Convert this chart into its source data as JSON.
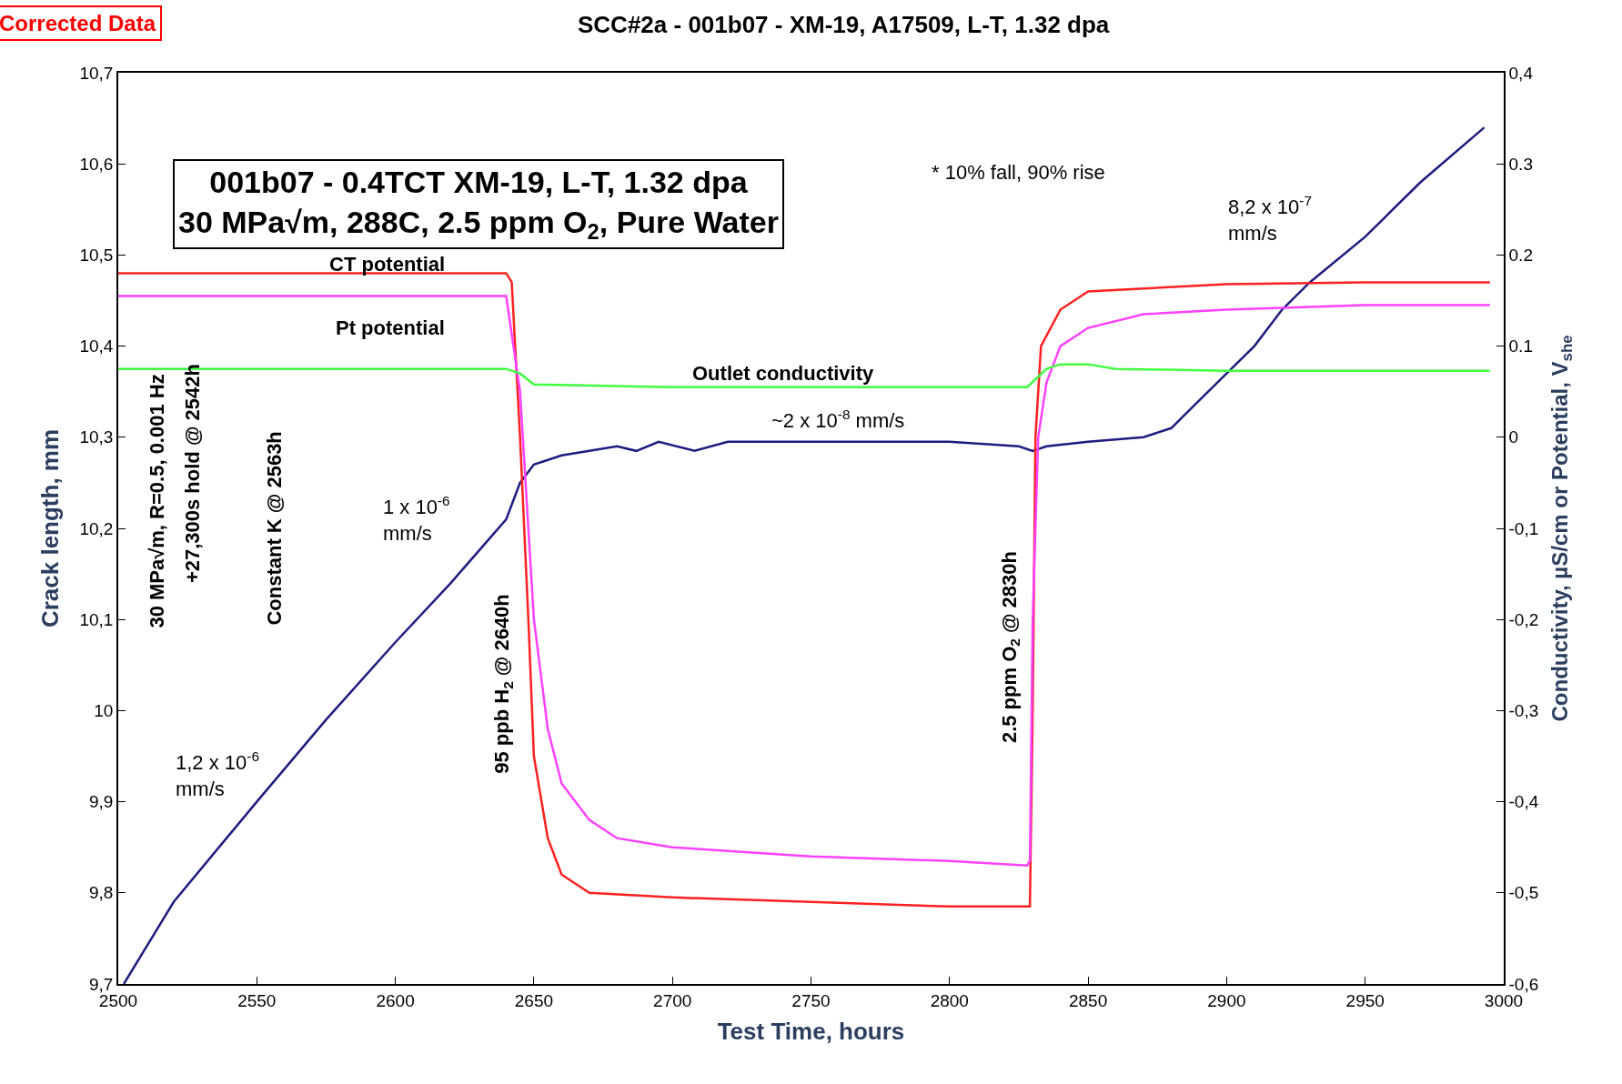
{
  "chart_data": {
    "type": "line",
    "title": "SCC#2a - 001b07 - XM-19, A17509, L-T, 1.32 dpa",
    "xlabel": "Test Time, hours",
    "ylabel": "Crack length, mm",
    "y2label": "Conductivity, µS/cm or Potential, V$_{she}$",
    "xlim": [
      2500,
      3000
    ],
    "xticks": [
      2500,
      2550,
      2600,
      2650,
      2700,
      2750,
      2800,
      2850,
      2900,
      2950,
      3000
    ],
    "ylim": [
      9.7,
      10.7
    ],
    "yticks": [
      {
        "value": 9.7,
        "label": "9,7"
      },
      {
        "value": 9.8,
        "label": "9,8"
      },
      {
        "value": 9.9,
        "label": "9,9"
      },
      10,
      {
        "value": 10.1,
        "label": "10,1"
      },
      {
        "value": 10.2,
        "label": "10,2"
      },
      {
        "value": 10.3,
        "label": "10,3"
      },
      {
        "value": 10.4,
        "label": "10,4"
      },
      {
        "value": 10.5,
        "label": "10,5"
      },
      {
        "value": 10.6,
        "label": "10,6"
      },
      {
        "value": 10.7,
        "label": "10,7"
      }
    ],
    "y2lim": [
      -0.6,
      0.4
    ],
    "y2ticks": [
      {
        "value": -0.6,
        "label": "-0,6"
      },
      {
        "value": -0.5,
        "label": "-0,5"
      },
      {
        "value": -0.4,
        "label": "-0,4"
      },
      {
        "value": -0.3,
        "label": "-0,3"
      },
      {
        "value": -0.2,
        "label": "-0,2"
      },
      {
        "value": -0.1,
        "label": "-0,1"
      },
      0,
      0.1,
      0.2,
      0.3,
      {
        "value": 0.4,
        "label": "0,4"
      }
    ],
    "series": [
      {
        "color": "#1c1c80",
        "x": [
          2502,
          2520,
          2550,
          2575,
          2600,
          2620,
          2640,
          2645,
          2650,
          2660,
          2680,
          2687,
          2695,
          2708,
          2720,
          2750,
          2780,
          2800,
          2825,
          2830,
          2835,
          2850,
          2870,
          2880,
          2890,
          2900,
          2910,
          2920,
          2930,
          2950,
          2970,
          2993
        ],
        "values": [
          9.7,
          9.79,
          9.9,
          9.99,
          10.075,
          10.14,
          10.21,
          10.25,
          10.27,
          10.28,
          10.29,
          10.285,
          10.295,
          10.285,
          10.295,
          10.295,
          10.295,
          10.295,
          10.29,
          10.285,
          10.29,
          10.295,
          10.3,
          10.31,
          10.34,
          10.37,
          10.4,
          10.44,
          10.47,
          10.52,
          10.58,
          10.64
        ]
      },
      {
        "color": "#ff2020",
        "axis": "y2",
        "x": [
          2500,
          2600,
          2640,
          2642,
          2645,
          2648,
          2650,
          2655,
          2660,
          2670,
          2700,
          2750,
          2800,
          2829,
          2830,
          2831,
          2833,
          2840,
          2850,
          2900,
          2950,
          2995
        ],
        "values": [
          0.18,
          0.18,
          0.18,
          0.17,
          0.0,
          -0.2,
          -0.35,
          -0.44,
          -0.48,
          -0.5,
          -0.505,
          -0.51,
          -0.515,
          -0.515,
          -0.3,
          0.0,
          0.1,
          0.14,
          0.16,
          0.168,
          0.17,
          0.17
        ]
      },
      {
        "color": "#ff40ff",
        "axis": "y2",
        "x": [
          2500,
          2600,
          2640,
          2645,
          2648,
          2650,
          2655,
          2660,
          2670,
          2680,
          2700,
          2750,
          2800,
          2828,
          2829,
          2830,
          2832,
          2835,
          2840,
          2850,
          2870,
          2900,
          2950,
          2995
        ],
        "values": [
          0.155,
          0.155,
          0.155,
          0.05,
          -0.1,
          -0.2,
          -0.32,
          -0.38,
          -0.42,
          -0.44,
          -0.45,
          -0.46,
          -0.465,
          -0.47,
          -0.465,
          -0.2,
          0.0,
          0.06,
          0.1,
          0.12,
          0.135,
          0.14,
          0.145,
          0.145
        ]
      },
      {
        "color": "#40ff40",
        "axis": "y2",
        "x": [
          2500,
          2600,
          2640,
          2645,
          2650,
          2700,
          2800,
          2828,
          2835,
          2840,
          2850,
          2860,
          2900,
          2995
        ],
        "values": [
          0.075,
          0.075,
          0.075,
          0.07,
          0.058,
          0.055,
          0.055,
          0.055,
          0.075,
          0.08,
          0.08,
          0.075,
          0.073,
          0.073
        ]
      }
    ],
    "annotations": [
      "Corrected Data",
      "001b07 - 0.4TCT XM-19, L-T, 1.32 dpa\n30 MPa√m, 288C, 2.5 ppm O$_{2}$, Pure Water",
      "* 10% fall, 90% rise",
      "30 MPa√m, R=0.5, 0.001 Hz",
      "+27,300s hold @ 2542h",
      "Constant K @ 2563h",
      "95 ppb H$_{2}$ @ 2640h",
      "2.5 ppm O$_{2}$ @ 2830h",
      "1,2 x 10$^{-6}$\nmm/s",
      "1 x 10$^{-6}$\nmm/s",
      "~2 x 10$^{-8}$ mm/s",
      "8,2 x 10$^{-7}$\nmm/s",
      "CT potential",
      "Pt potential",
      "Outlet conductivity"
    ]
  }
}
